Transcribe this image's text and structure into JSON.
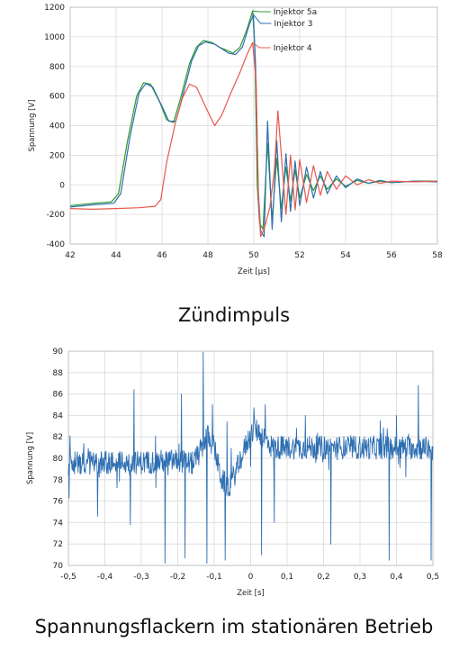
{
  "chart_data": [
    {
      "type": "line",
      "title": "",
      "xlabel": "Zeit [µs]",
      "ylabel": "Spannung [V]",
      "xlim": [
        42,
        58
      ],
      "ylim": [
        -400,
        1200
      ],
      "xticks": [
        "42",
        "44",
        "46",
        "48",
        "50",
        "52",
        "54",
        "56",
        "58"
      ],
      "yticks": [
        "1200",
        "1000",
        "800",
        "600",
        "400",
        "200",
        "0",
        "-200",
        "-400"
      ],
      "grid": true,
      "legend_position": "top-right-inline",
      "series": [
        {
          "name": "Injektor 5a",
          "color": "#2f9a2f",
          "points": [
            [
              42.0,
              -140
            ],
            [
              43.0,
              -125
            ],
            [
              43.8,
              -115
            ],
            [
              44.1,
              -60
            ],
            [
              44.5,
              300
            ],
            [
              44.9,
              600
            ],
            [
              45.2,
              690
            ],
            [
              45.5,
              680
            ],
            [
              45.9,
              560
            ],
            [
              46.2,
              440
            ],
            [
              46.5,
              420
            ],
            [
              46.8,
              580
            ],
            [
              47.2,
              820
            ],
            [
              47.5,
              930
            ],
            [
              47.8,
              975
            ],
            [
              48.2,
              960
            ],
            [
              48.5,
              930
            ],
            [
              48.8,
              910
            ],
            [
              49.1,
              890
            ],
            [
              49.4,
              930
            ],
            [
              49.7,
              1050
            ],
            [
              49.95,
              1175
            ],
            [
              50.05,
              900
            ],
            [
              50.15,
              0
            ],
            [
              50.25,
              -260
            ],
            [
              50.4,
              -300
            ],
            [
              50.6,
              280
            ],
            [
              50.8,
              -240
            ],
            [
              51.0,
              180
            ],
            [
              51.2,
              -160
            ],
            [
              51.4,
              120
            ],
            [
              51.6,
              -110
            ],
            [
              51.8,
              100
            ],
            [
              52.0,
              -90
            ],
            [
              52.3,
              70
            ],
            [
              52.6,
              -40
            ],
            [
              52.9,
              60
            ],
            [
              53.2,
              -30
            ],
            [
              53.6,
              40
            ],
            [
              54.0,
              -10
            ],
            [
              54.5,
              30
            ],
            [
              55.0,
              10
            ],
            [
              55.5,
              25
            ],
            [
              56.0,
              15
            ],
            [
              57.0,
              25
            ],
            [
              58.0,
              25
            ]
          ]
        },
        {
          "name": "Injektor 3",
          "color": "#2e6fb2",
          "points": [
            [
              42.0,
              -150
            ],
            [
              43.0,
              -135
            ],
            [
              43.9,
              -125
            ],
            [
              44.2,
              -60
            ],
            [
              44.6,
              320
            ],
            [
              45.0,
              620
            ],
            [
              45.3,
              685
            ],
            [
              45.6,
              660
            ],
            [
              46.0,
              530
            ],
            [
              46.3,
              430
            ],
            [
              46.6,
              430
            ],
            [
              46.9,
              600
            ],
            [
              47.3,
              840
            ],
            [
              47.6,
              940
            ],
            [
              47.9,
              965
            ],
            [
              48.3,
              950
            ],
            [
              48.6,
              920
            ],
            [
              48.9,
              890
            ],
            [
              49.2,
              880
            ],
            [
              49.5,
              930
            ],
            [
              49.8,
              1080
            ],
            [
              49.98,
              1150
            ],
            [
              50.08,
              800
            ],
            [
              50.2,
              -50
            ],
            [
              50.3,
              -310
            ],
            [
              50.45,
              -350
            ],
            [
              50.6,
              430
            ],
            [
              50.8,
              -300
            ],
            [
              51.0,
              300
            ],
            [
              51.2,
              -250
            ],
            [
              51.4,
              210
            ],
            [
              51.6,
              -180
            ],
            [
              51.8,
              160
            ],
            [
              52.0,
              -140
            ],
            [
              52.3,
              120
            ],
            [
              52.6,
              -90
            ],
            [
              52.9,
              90
            ],
            [
              53.2,
              -60
            ],
            [
              53.6,
              60
            ],
            [
              54.0,
              -20
            ],
            [
              54.5,
              40
            ],
            [
              55.0,
              10
            ],
            [
              55.5,
              30
            ],
            [
              56.0,
              15
            ],
            [
              57.0,
              25
            ],
            [
              58.0,
              20
            ]
          ]
        },
        {
          "name": "Injektor 4",
          "color": "#e8584c",
          "points": [
            [
              42.0,
              -160
            ],
            [
              43.0,
              -165
            ],
            [
              44.0,
              -160
            ],
            [
              45.0,
              -155
            ],
            [
              45.7,
              -145
            ],
            [
              45.95,
              -100
            ],
            [
              46.2,
              150
            ],
            [
              46.6,
              430
            ],
            [
              46.9,
              590
            ],
            [
              47.2,
              680
            ],
            [
              47.5,
              660
            ],
            [
              47.8,
              560
            ],
            [
              48.1,
              460
            ],
            [
              48.3,
              400
            ],
            [
              48.6,
              470
            ],
            [
              49.0,
              620
            ],
            [
              49.4,
              760
            ],
            [
              49.7,
              880
            ],
            [
              49.95,
              960
            ],
            [
              50.1,
              700
            ],
            [
              50.2,
              -100
            ],
            [
              50.3,
              -350
            ],
            [
              50.45,
              -300
            ],
            [
              50.7,
              -150
            ],
            [
              50.9,
              100
            ],
            [
              51.05,
              500
            ],
            [
              51.2,
              200
            ],
            [
              51.4,
              -200
            ],
            [
              51.6,
              200
            ],
            [
              51.8,
              -170
            ],
            [
              52.0,
              170
            ],
            [
              52.3,
              -120
            ],
            [
              52.6,
              130
            ],
            [
              52.9,
              -70
            ],
            [
              53.2,
              90
            ],
            [
              53.6,
              -30
            ],
            [
              54.0,
              60
            ],
            [
              54.5,
              0
            ],
            [
              55.0,
              35
            ],
            [
              55.5,
              10
            ],
            [
              56.0,
              25
            ],
            [
              57.0,
              20
            ],
            [
              58.0,
              25
            ]
          ]
        }
      ]
    },
    {
      "type": "line",
      "title": "",
      "xlabel": "Zeit [s]",
      "ylabel": "Spannung [V]",
      "xlim": [
        -0.5,
        0.5
      ],
      "ylim": [
        70,
        90
      ],
      "xticks": [
        "-0,5",
        "-0,4",
        "-0,3",
        "-0,2",
        "-0,1",
        "0",
        "0,1",
        "0,2",
        "0,3",
        "0,4",
        "0,5"
      ],
      "yticks": [
        "90",
        "88",
        "86",
        "84",
        "82",
        "80",
        "78",
        "76",
        "74",
        "72",
        "70"
      ],
      "grid": true,
      "series": [
        {
          "color": "#2e6fb2",
          "baseline": [
            [
              -0.5,
              79.6
            ],
            [
              -0.3,
              79.6
            ],
            [
              -0.2,
              79.8
            ],
            [
              -0.16,
              79.5
            ],
            [
              -0.14,
              80.5
            ],
            [
              -0.12,
              82.2
            ],
            [
              -0.1,
              81.0
            ],
            [
              -0.08,
              78.0
            ],
            [
              -0.06,
              77.3
            ],
            [
              -0.04,
              78.8
            ],
            [
              -0.01,
              81.5
            ],
            [
              0.01,
              82.8
            ],
            [
              0.03,
              82.2
            ],
            [
              0.06,
              81.0
            ],
            [
              0.15,
              81.0
            ],
            [
              0.3,
              81.0
            ],
            [
              0.45,
              81.0
            ],
            [
              0.5,
              80.9
            ]
          ],
          "spikes": [
            [
              -0.498,
              76.3
            ],
            [
              -0.42,
              74.6
            ],
            [
              -0.33,
              73.8
            ],
            [
              -0.32,
              86.4
            ],
            [
              -0.235,
              70.2
            ],
            [
              -0.19,
              86.0
            ],
            [
              -0.18,
              70.7
            ],
            [
              -0.13,
              89.9
            ],
            [
              -0.12,
              70.2
            ],
            [
              -0.105,
              85.0
            ],
            [
              -0.07,
              70.5
            ],
            [
              -0.065,
              83.4
            ],
            [
              0.03,
              71.0
            ],
            [
              0.04,
              85.0
            ],
            [
              0.065,
              74.0
            ],
            [
              0.15,
              84.0
            ],
            [
              0.22,
              72.0
            ],
            [
              0.38,
              70.5
            ],
            [
              0.4,
              84.0
            ],
            [
              0.46,
              86.8
            ],
            [
              0.495,
              70.5
            ]
          ]
        }
      ]
    }
  ],
  "captions": {
    "chart1": "Zündimpuls",
    "chart2": "Spannungsflackern im stationären Betrieb"
  }
}
